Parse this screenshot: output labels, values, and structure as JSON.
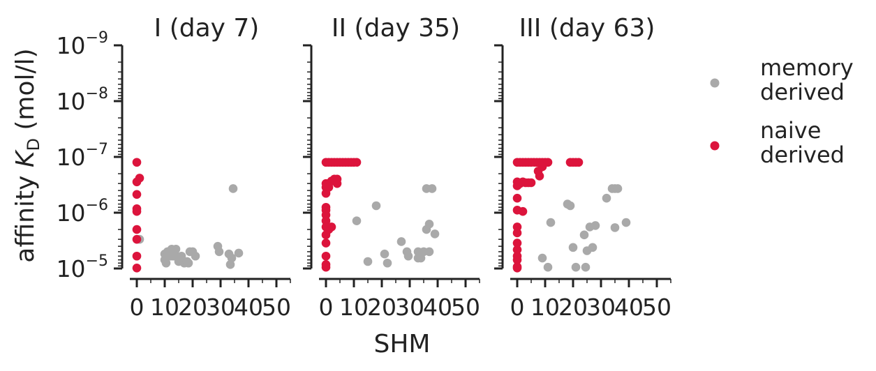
{
  "figure": {
    "ylabel_prefix": "affinity ",
    "ylabel_italic": "K",
    "ylabel_sub": "D",
    "ylabel_suffix": " (mol/l)",
    "xlabel": "SHM"
  },
  "legend": {
    "placement": "right",
    "entries": [
      {
        "line1": "memory",
        "line2": "derived",
        "color": "#a9a9a9"
      },
      {
        "line1": "naive",
        "line2": "derived",
        "color": "#dc143c"
      }
    ]
  },
  "chart_data": [
    {
      "type": "scatter",
      "title": "I (day 7)",
      "x_ticks": [
        "0",
        "10",
        "20",
        "30",
        "40",
        "50"
      ],
      "xlim": [
        -2,
        55
      ],
      "y_ticks": [
        "10^-9",
        "10^-8",
        "10^-7",
        "10^-6",
        "10^-5"
      ],
      "yscale": "log",
      "y_inverted": true,
      "ylim": [
        1e-09,
        1e-05
      ],
      "series": [
        {
          "color": "#a9a9a9",
          "points": [
            [
              1,
              3e-06
            ],
            [
              10,
              5.5e-06
            ],
            [
              10,
              7e-06
            ],
            [
              10.5,
              8e-06
            ],
            [
              11,
              5e-06
            ],
            [
              11,
              6e-06
            ],
            [
              12,
              6e-06
            ],
            [
              12.5,
              4.5e-06
            ],
            [
              13,
              6e-06
            ],
            [
              13.5,
              5e-06
            ],
            [
              14,
              4.5e-06
            ],
            [
              15,
              7.5e-06
            ],
            [
              16,
              6e-06
            ],
            [
              17,
              8e-06
            ],
            [
              18,
              7.5e-06
            ],
            [
              18.5,
              8e-06
            ],
            [
              19,
              5e-06
            ],
            [
              20,
              5e-06
            ],
            [
              21,
              6e-06
            ],
            [
              29,
              4e-06
            ],
            [
              29.5,
              5e-06
            ],
            [
              33,
              5.5e-06
            ],
            [
              33.5,
              8.5e-06
            ],
            [
              34,
              6.5e-06
            ],
            [
              34.5,
              3.7e-07
            ],
            [
              36.5,
              5.3e-06
            ]
          ]
        },
        {
          "color": "#dc143c",
          "points": [
            [
              0,
              1.25e-07
            ],
            [
              0,
              2.8e-07
            ],
            [
              0,
              4.7e-07
            ],
            [
              0,
              8.5e-07
            ],
            [
              0,
              9.5e-07
            ],
            [
              0,
              2e-06
            ],
            [
              0,
              3e-06
            ],
            [
              0,
              6e-06
            ],
            [
              0,
              9.8e-06
            ],
            [
              1,
              2.4e-07
            ]
          ]
        }
      ]
    },
    {
      "type": "scatter",
      "title": "II (day 35)",
      "x_ticks": [
        "0",
        "10",
        "20",
        "30",
        "40",
        "50"
      ],
      "xlim": [
        -2,
        55
      ],
      "y_ticks": [
        "10^-9",
        "10^-8",
        "10^-7",
        "10^-6",
        "10^-5"
      ],
      "yscale": "log",
      "y_inverted": true,
      "ylim": [
        1e-09,
        1e-05
      ],
      "series": [
        {
          "color": "#a9a9a9",
          "points": [
            [
              11,
              1.4e-06
            ],
            [
              15,
              7.5e-06
            ],
            [
              18,
              7.5e-07
            ],
            [
              21,
              5.5e-06
            ],
            [
              22,
              8e-06
            ],
            [
              27,
              3.3e-06
            ],
            [
              29,
              5e-06
            ],
            [
              29.5,
              6e-06
            ],
            [
              33,
              5e-06
            ],
            [
              33,
              6.5e-06
            ],
            [
              34,
              6.5e-06
            ],
            [
              35,
              5e-06
            ],
            [
              36,
              3.7e-07
            ],
            [
              36,
              2e-06
            ],
            [
              37,
              1.6e-06
            ],
            [
              37,
              5e-06
            ],
            [
              38,
              3.7e-07
            ],
            [
              39,
              2.4e-06
            ]
          ]
        },
        {
          "color": "#dc143c",
          "points": [
            [
              0,
              1.25e-07
            ],
            [
              1,
              1.25e-07
            ],
            [
              2,
              1.25e-07
            ],
            [
              3,
              1.25e-07
            ],
            [
              4,
              1.25e-07
            ],
            [
              5,
              1.25e-07
            ],
            [
              6,
              1.25e-07
            ],
            [
              7,
              1.25e-07
            ],
            [
              8,
              1.25e-07
            ],
            [
              9,
              1.25e-07
            ],
            [
              10,
              1.25e-07
            ],
            [
              11,
              1.25e-07
            ],
            [
              0,
              3e-07
            ],
            [
              0,
              3.5e-07
            ],
            [
              0,
              4.5e-07
            ],
            [
              0,
              8e-07
            ],
            [
              0,
              9e-07
            ],
            [
              0,
              1.1e-06
            ],
            [
              0,
              1.4e-06
            ],
            [
              0,
              1.8e-06
            ],
            [
              0,
              2.5e-06
            ],
            [
              0,
              3.5e-06
            ],
            [
              0,
              6e-06
            ],
            [
              0,
              8.5e-06
            ],
            [
              0,
              9.5e-06
            ],
            [
              1,
              3e-07
            ],
            [
              1,
              3.5e-07
            ],
            [
              1,
              2e-06
            ],
            [
              2,
              2.7e-07
            ],
            [
              2,
              1.8e-06
            ],
            [
              3,
              2.5e-07
            ],
            [
              4,
              3e-07
            ],
            [
              4,
              2.5e-07
            ]
          ]
        }
      ]
    },
    {
      "type": "scatter",
      "title": "III (day 63)",
      "x_ticks": [
        "0",
        "10",
        "20",
        "30",
        "40",
        "50"
      ],
      "xlim": [
        -2,
        55
      ],
      "y_ticks": [
        "10^-9",
        "10^-8",
        "10^-7",
        "10^-6",
        "10^-5"
      ],
      "yscale": "log",
      "y_inverted": true,
      "ylim": [
        1e-09,
        1e-05
      ],
      "series": [
        {
          "color": "#a9a9a9",
          "points": [
            [
              9,
              6.5e-06
            ],
            [
              11,
              9.5e-06
            ],
            [
              12,
              1.5e-06
            ],
            [
              18,
              7e-07
            ],
            [
              19,
              7.5e-07
            ],
            [
              20,
              4.2e-06
            ],
            [
              21,
              9.5e-06
            ],
            [
              24,
              2.5e-06
            ],
            [
              24.5,
              9.5e-06
            ],
            [
              25,
              4.8e-06
            ],
            [
              26,
              1.8e-06
            ],
            [
              27,
              4.2e-06
            ],
            [
              28,
              1.7e-06
            ],
            [
              32,
              5.5e-07
            ],
            [
              34,
              3.7e-07
            ],
            [
              35,
              3.7e-07
            ],
            [
              36,
              3.7e-07
            ],
            [
              35,
              1.85e-06
            ],
            [
              39,
              1.5e-06
            ]
          ]
        },
        {
          "color": "#dc143c",
          "points": [
            [
              0,
              1.25e-07
            ],
            [
              1,
              1.25e-07
            ],
            [
              2,
              1.25e-07
            ],
            [
              3,
              1.25e-07
            ],
            [
              4,
              1.25e-07
            ],
            [
              5,
              1.25e-07
            ],
            [
              6,
              1.25e-07
            ],
            [
              7,
              1.25e-07
            ],
            [
              8,
              1.25e-07
            ],
            [
              9,
              1.25e-07
            ],
            [
              10,
              1.25e-07
            ],
            [
              11,
              1.25e-07
            ],
            [
              19,
              1.25e-07
            ],
            [
              20,
              1.25e-07
            ],
            [
              21,
              1.25e-07
            ],
            [
              22,
              1.25e-07
            ],
            [
              7.5,
              1.8e-07
            ],
            [
              8,
              2.2e-07
            ],
            [
              9,
              1.5e-07
            ],
            [
              0,
              2.8e-07
            ],
            [
              0,
              3.3e-07
            ],
            [
              0,
              9e-07
            ],
            [
              0,
              1.8e-06
            ],
            [
              0,
              2.3e-06
            ],
            [
              0,
              3.5e-06
            ],
            [
              0,
              4.6e-06
            ],
            [
              0,
              6e-06
            ],
            [
              0,
              7e-06
            ],
            [
              0,
              9.3e-06
            ],
            [
              0,
              9.8e-06
            ],
            [
              0,
              5.5e-07
            ],
            [
              1,
              3e-07
            ],
            [
              2,
              2.8e-07
            ],
            [
              2,
              9.5e-07
            ],
            [
              3,
              2.9e-07
            ],
            [
              4,
              2.9e-07
            ],
            [
              5,
              2.9e-07
            ]
          ]
        }
      ]
    }
  ]
}
